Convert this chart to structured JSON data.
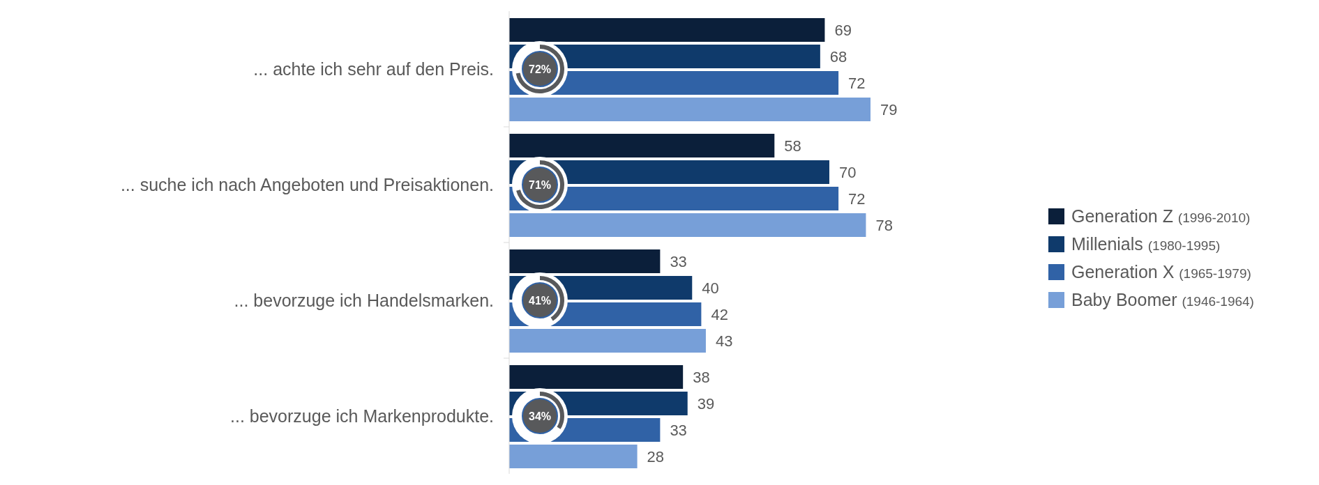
{
  "chart_data": {
    "type": "bar",
    "orientation": "horizontal",
    "data_labels": true,
    "legend": "right",
    "categories": [
      "... achte ich sehr auf den Preis.",
      "... suche ich nach Angeboten und Preisaktionen.",
      "... bevorzuge ich Handelsmarken.",
      "... bevorzuge ich Markenprodukte."
    ],
    "series": [
      {
        "name": "Generation Z (1996-2010)",
        "color": "#0b1f3a",
        "values": [
          69,
          58,
          33,
          38
        ]
      },
      {
        "name": "Millenials (1980-1995)",
        "color": "#0f3a6b",
        "values": [
          68,
          70,
          40,
          39
        ]
      },
      {
        "name": "Generation X (1965-1979)",
        "color": "#3062a6",
        "values": [
          72,
          72,
          42,
          33
        ]
      },
      {
        "name": "Baby Boomer (1946-1964)",
        "color": "#779fd8",
        "values": [
          79,
          78,
          43,
          28
        ]
      }
    ],
    "annotations": [
      {
        "text": "72%",
        "y": "... achte ich sehr auf den Preis."
      },
      {
        "text": "71%",
        "y": "... suche ich nach Angeboten und Preisaktionen."
      },
      {
        "text": "41%",
        "y": "... bevorzuge ich Handelsmarken."
      },
      {
        "text": "34%",
        "y": "... bevorzuge ich Markenprodukte."
      }
    ]
  }
}
